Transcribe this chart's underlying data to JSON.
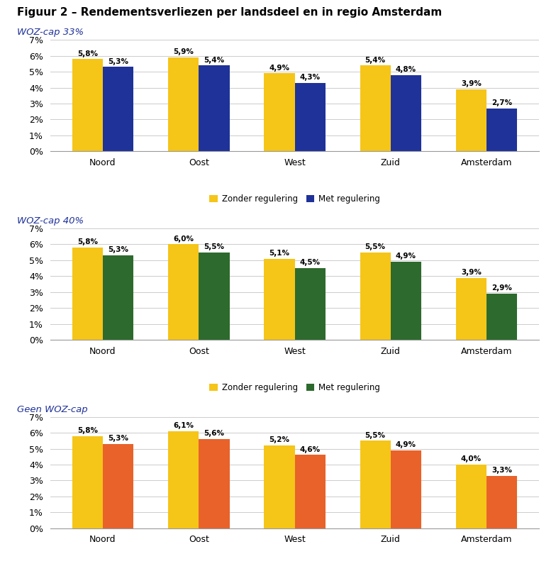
{
  "title": "Figuur 2 – Rendementsverliezen per landsdeel en in regio Amsterdam",
  "categories": [
    "Noord",
    "Oost",
    "West",
    "Zuid",
    "Amsterdam"
  ],
  "charts": [
    {
      "subtitle": "WOZ-cap 33%",
      "zonder": [
        5.8,
        5.9,
        4.9,
        5.4,
        3.9
      ],
      "met": [
        5.3,
        5.4,
        4.3,
        4.8,
        2.7
      ],
      "zonder_color": "#F5C518",
      "met_color": "#1F3299",
      "legend_met_label": "Met regulering"
    },
    {
      "subtitle": "WOZ-cap 40%",
      "zonder": [
        5.8,
        6.0,
        5.1,
        5.5,
        3.9
      ],
      "met": [
        5.3,
        5.5,
        4.5,
        4.9,
        2.9
      ],
      "zonder_color": "#F5C518",
      "met_color": "#2D6A2D",
      "legend_met_label": "Met regulering"
    },
    {
      "subtitle": "Geen WOZ-cap",
      "zonder": [
        5.8,
        6.1,
        5.2,
        5.5,
        4.0
      ],
      "met": [
        5.3,
        5.6,
        4.6,
        4.9,
        3.3
      ],
      "zonder_color": "#F5C518",
      "met_color": "#E8622A",
      "legend_met_label": "Met regulering"
    }
  ],
  "ylim": [
    0,
    0.07
  ],
  "yticks": [
    0.0,
    0.01,
    0.02,
    0.03,
    0.04,
    0.05,
    0.06,
    0.07
  ],
  "ytick_labels": [
    "0%",
    "1%",
    "2%",
    "3%",
    "4%",
    "5%",
    "6%",
    "7%"
  ],
  "background_color": "#FFFFFF",
  "bar_width": 0.32,
  "annotation_fontsize": 7.5,
  "label_fontsize": 9,
  "subtitle_fontsize": 9.5,
  "title_fontsize": 11,
  "legend_fontsize": 8.5
}
